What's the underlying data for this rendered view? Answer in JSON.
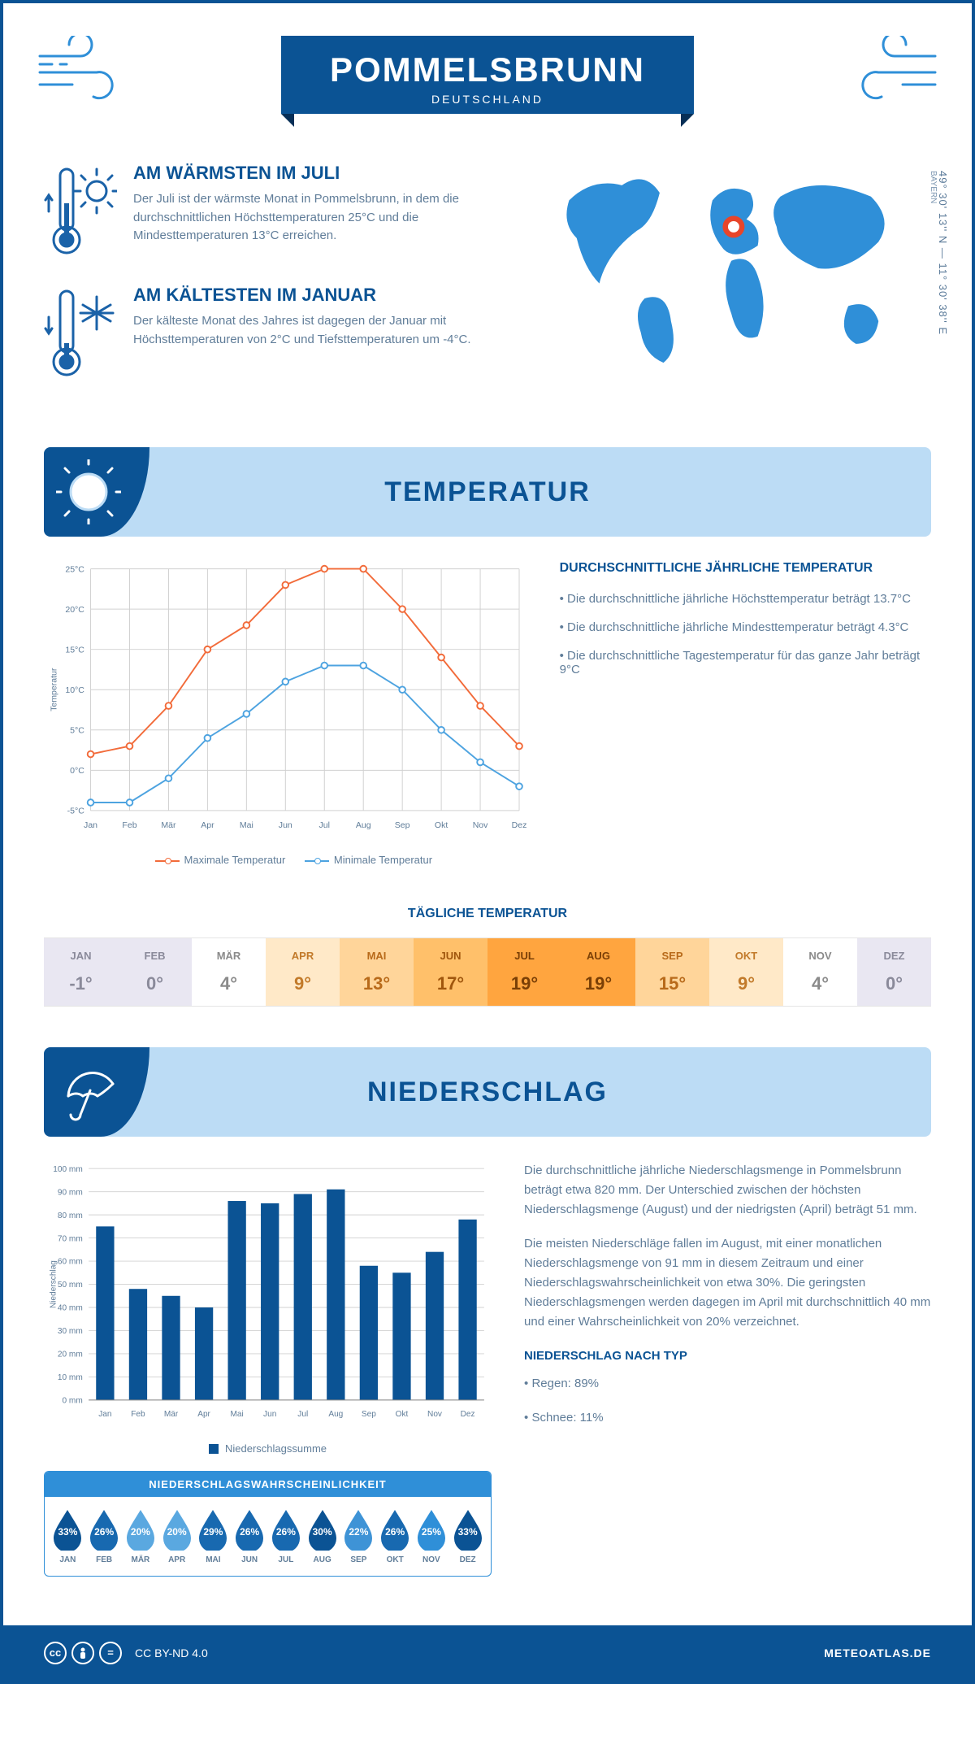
{
  "colors": {
    "primary": "#0b5394",
    "light_blue": "#2f8fd8",
    "banner_bg": "#bcdcf5",
    "text_muted": "#607d99",
    "high_line": "#f26b3a",
    "low_line": "#4da3e0",
    "bar_fill": "#0b5394",
    "grid": "#d0d0d0"
  },
  "header": {
    "city": "POMMELSBRUNN",
    "country": "DEUTSCHLAND",
    "coords": "49° 30' 13'' N — 11° 30' 38'' E",
    "region": "BAYERN"
  },
  "summary": {
    "warm_title": "AM WÄRMSTEN IM JULI",
    "warm_text": "Der Juli ist der wärmste Monat in Pommelsbrunn, in dem die durchschnittlichen Höchsttemperaturen 25°C und die Mindesttemperaturen 13°C erreichen.",
    "cold_title": "AM KÄLTESTEN IM JANUAR",
    "cold_text": "Der kälteste Monat des Jahres ist dagegen der Januar mit Höchsttemperaturen von 2°C und Tiefsttemperaturen um -4°C."
  },
  "months": [
    "Jan",
    "Feb",
    "Mär",
    "Apr",
    "Mai",
    "Jun",
    "Jul",
    "Aug",
    "Sep",
    "Okt",
    "Nov",
    "Dez"
  ],
  "months_upper": [
    "JAN",
    "FEB",
    "MÄR",
    "APR",
    "MAI",
    "JUN",
    "JUL",
    "AUG",
    "SEP",
    "OKT",
    "NOV",
    "DEZ"
  ],
  "temperature": {
    "section_title": "TEMPERATUR",
    "chart": {
      "type": "line",
      "ylabel": "Temperatur",
      "ymin": -5,
      "ymax": 25,
      "ystep": 5,
      "yticks": [
        "-5°C",
        "0°C",
        "5°C",
        "10°C",
        "15°C",
        "20°C",
        "25°C"
      ],
      "high_series": [
        2,
        3,
        8,
        15,
        18,
        23,
        25,
        25,
        20,
        14,
        8,
        3
      ],
      "low_series": [
        -4,
        -4,
        -1,
        4,
        7,
        11,
        13,
        13,
        10,
        5,
        1,
        -2
      ],
      "legend_high": "Maximale Temperatur",
      "legend_low": "Minimale Temperatur",
      "line_width": 2,
      "marker_size": 4
    },
    "facts_title": "DURCHSCHNITTLICHE JÄHRLICHE TEMPERATUR",
    "facts": [
      "• Die durchschnittliche jährliche Höchsttemperatur beträgt 13.7°C",
      "• Die durchschnittliche jährliche Mindesttemperatur beträgt 4.3°C",
      "• Die durchschnittliche Tagestemperatur für das ganze Jahr beträgt 9°C"
    ],
    "daily_title": "TÄGLICHE TEMPERATUR",
    "daily": {
      "values": [
        "-1°",
        "0°",
        "4°",
        "9°",
        "13°",
        "17°",
        "19°",
        "19°",
        "15°",
        "9°",
        "4°",
        "0°"
      ],
      "bg_colors": [
        "#e9e7f2",
        "#e9e7f2",
        "#ffffff",
        "#ffe9c8",
        "#ffd59a",
        "#ffc06a",
        "#ffa53f",
        "#ffa53f",
        "#ffd59a",
        "#ffe9c8",
        "#ffffff",
        "#e9e7f2"
      ],
      "text_colors": [
        "#8a8a9a",
        "#8a8a9a",
        "#8a8a8a",
        "#c27a2a",
        "#b86a1a",
        "#a0560d",
        "#7a3f06",
        "#7a3f06",
        "#b86a1a",
        "#c27a2a",
        "#8a8a8a",
        "#8a8a9a"
      ]
    }
  },
  "precip": {
    "section_title": "NIEDERSCHLAG",
    "chart": {
      "type": "bar",
      "ylabel": "Niederschlag",
      "ymin": 0,
      "ymax": 100,
      "ystep": 10,
      "values": [
        75,
        48,
        45,
        40,
        86,
        85,
        89,
        91,
        58,
        55,
        64,
        78
      ],
      "legend": "Niederschlagssumme",
      "bar_width": 0.55
    },
    "para1": "Die durchschnittliche jährliche Niederschlagsmenge in Pommelsbrunn beträgt etwa 820 mm. Der Unterschied zwischen der höchsten Niederschlagsmenge (August) und der niedrigsten (April) beträgt 51 mm.",
    "para2": "Die meisten Niederschläge fallen im August, mit einer monatlichen Niederschlagsmenge von 91 mm in diesem Zeitraum und einer Niederschlagswahrscheinlichkeit von etwa 30%. Die geringsten Niederschlagsmengen werden dagegen im April mit durchschnittlich 40 mm und einer Wahrscheinlichkeit von 20% verzeichnet.",
    "type_title": "NIEDERSCHLAG NACH TYP",
    "type_rain": "• Regen: 89%",
    "type_snow": "• Schnee: 11%",
    "prob_title": "NIEDERSCHLAGSWAHRSCHEINLICHKEIT",
    "prob": {
      "values": [
        "33%",
        "26%",
        "20%",
        "20%",
        "29%",
        "26%",
        "26%",
        "30%",
        "22%",
        "26%",
        "25%",
        "33%"
      ],
      "colors": [
        "#0b5394",
        "#1869b0",
        "#5aa8e0",
        "#5aa8e0",
        "#1869b0",
        "#1869b0",
        "#1869b0",
        "#0b5394",
        "#3e93d6",
        "#1869b0",
        "#2f8fd8",
        "#0b5394"
      ]
    }
  },
  "footer": {
    "license": "CC BY-ND 4.0",
    "site": "METEOATLAS.DE"
  }
}
